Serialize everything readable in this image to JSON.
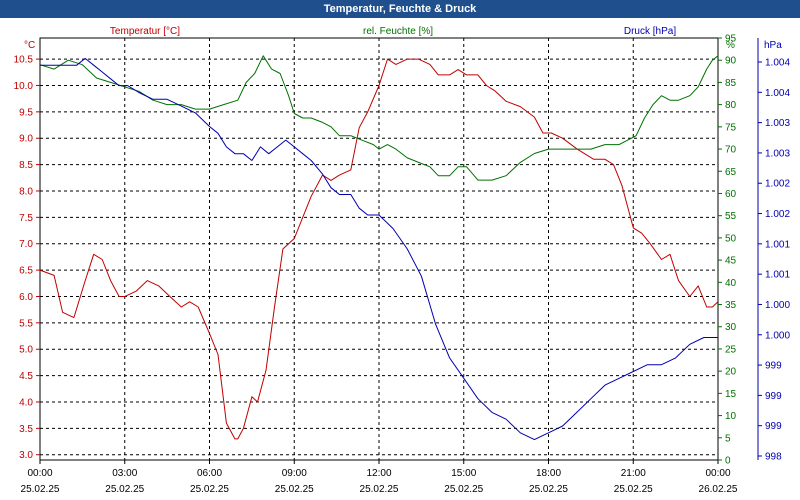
{
  "header": {
    "title": "Temperatur, Feuchte & Druck"
  },
  "colors": {
    "temperature": "#c00000",
    "humidity": "#007000",
    "pressure": "#0000b0",
    "title_bar": "#1f4f8c"
  },
  "chart_data": {
    "type": "line",
    "title": "Temperatur, Feuchte & Druck",
    "grid": true,
    "x": {
      "tick_times": [
        "00:00",
        "03:00",
        "06:00",
        "09:00",
        "12:00",
        "15:00",
        "18:00",
        "21:00",
        "00:00"
      ],
      "tick_dates": [
        "25.02.25",
        "25.02.25",
        "25.02.25",
        "25.02.25",
        "25.02.25",
        "25.02.25",
        "25.02.25",
        "25.02.25",
        "26.02.25"
      ],
      "range_hours": [
        0,
        24
      ]
    },
    "axes": {
      "temperature": {
        "label": "Temperatur [°C]",
        "unit": "°C",
        "side": "left",
        "range": [
          2.9,
          10.9
        ],
        "ticks": [
          "3.0",
          "3.5",
          "4.0",
          "4.5",
          "5.0",
          "5.5",
          "6.0",
          "6.5",
          "7.0",
          "7.5",
          "8.0",
          "8.5",
          "9.0",
          "9.5",
          "10.0",
          "10.5"
        ]
      },
      "humidity": {
        "label": "rel. Feuchte [%]",
        "unit": "%",
        "side": "right",
        "range": [
          0,
          95
        ],
        "ticks": [
          "0",
          "5",
          "10",
          "15",
          "20",
          "25",
          "30",
          "35",
          "40",
          "45",
          "50",
          "55",
          "60",
          "65",
          "70",
          "75",
          "80",
          "85",
          "90",
          "95"
        ]
      },
      "pressure": {
        "label": "Druck [hPa]",
        "unit": "hPa",
        "side": "right",
        "range": [
          998.1,
          1004.3
        ],
        "ticks": [
          "998",
          "999",
          "999",
          "999",
          "1.000",
          "1.000",
          "1.001",
          "1.001",
          "1.002",
          "1.002",
          "1.003",
          "1.003",
          "1.004",
          "1.004"
        ]
      }
    },
    "series": [
      {
        "name": "Temperatur [°C]",
        "axis": "temperature",
        "x": [
          0,
          0.5,
          0.8,
          1.2,
          1.6,
          1.9,
          2.2,
          2.5,
          2.8,
          3.0,
          3.4,
          3.8,
          4.2,
          4.6,
          5.0,
          5.3,
          5.6,
          6.0,
          6.3,
          6.6,
          6.9,
          7.0,
          7.2,
          7.5,
          7.7,
          8.0,
          8.3,
          8.6,
          9.0,
          9.3,
          9.6,
          10.0,
          10.3,
          10.6,
          11.0,
          11.3,
          11.6,
          12.0,
          12.3,
          12.6,
          13.0,
          13.4,
          13.8,
          14.1,
          14.5,
          14.8,
          15.1,
          15.5,
          15.8,
          16.1,
          16.5,
          17.0,
          17.5,
          17.8,
          18.1,
          18.5,
          19.0,
          19.3,
          19.6,
          20.0,
          20.3,
          20.6,
          21.0,
          21.3,
          21.6,
          22.0,
          22.3,
          22.6,
          23.0,
          23.3,
          23.6,
          23.8,
          24.0
        ],
        "values": [
          6.5,
          6.4,
          5.7,
          5.6,
          6.3,
          6.8,
          6.7,
          6.3,
          6.0,
          6.0,
          6.1,
          6.3,
          6.2,
          6.0,
          5.8,
          5.9,
          5.8,
          5.3,
          4.9,
          3.6,
          3.3,
          3.3,
          3.5,
          4.1,
          4.0,
          4.6,
          5.8,
          6.9,
          7.1,
          7.5,
          7.9,
          8.3,
          8.2,
          8.3,
          8.4,
          9.2,
          9.5,
          10.0,
          10.5,
          10.4,
          10.5,
          10.5,
          10.4,
          10.2,
          10.2,
          10.3,
          10.2,
          10.2,
          10.0,
          9.9,
          9.7,
          9.6,
          9.4,
          9.1,
          9.1,
          9.0,
          8.8,
          8.7,
          8.6,
          8.6,
          8.5,
          8.1,
          7.3,
          7.2,
          7.0,
          6.7,
          6.8,
          6.3,
          6.0,
          6.2,
          5.8,
          5.8,
          5.9
        ]
      },
      {
        "name": "rel. Feuchte [%]",
        "axis": "humidity",
        "x": [
          0,
          0.5,
          1.0,
          1.5,
          2.0,
          2.5,
          3.0,
          3.5,
          4.0,
          4.5,
          5.0,
          5.5,
          6.0,
          6.5,
          7.0,
          7.3,
          7.6,
          7.9,
          8.2,
          8.5,
          8.8,
          9.0,
          9.3,
          9.6,
          10.0,
          10.3,
          10.6,
          11.0,
          11.4,
          11.8,
          12.0,
          12.3,
          12.6,
          13.0,
          13.4,
          13.8,
          14.1,
          14.5,
          14.8,
          15.1,
          15.5,
          16.0,
          16.5,
          17.0,
          17.5,
          18.0,
          18.5,
          19.0,
          19.5,
          20.0,
          20.5,
          20.8,
          21.1,
          21.4,
          21.7,
          22.0,
          22.3,
          22.6,
          23.0,
          23.3,
          23.6,
          23.8,
          24.0
        ],
        "values": [
          89,
          88,
          90,
          89,
          86,
          85,
          84,
          83,
          81,
          80,
          80,
          79,
          79,
          80,
          81,
          85,
          87,
          91,
          88,
          87,
          82,
          78,
          77,
          77,
          76,
          75,
          73,
          73,
          72,
          71,
          70,
          71,
          70,
          68,
          67,
          66,
          64,
          64,
          66,
          66,
          63,
          63,
          64,
          67,
          69,
          70,
          70,
          70,
          70,
          71,
          71,
          72,
          73,
          77,
          80,
          82,
          81,
          81,
          82,
          84,
          88,
          90,
          91
        ]
      },
      {
        "name": "Druck [hPa]",
        "axis": "pressure",
        "x": [
          0,
          0.5,
          1.0,
          1.3,
          1.6,
          1.9,
          2.2,
          2.5,
          2.8,
          3.1,
          3.5,
          4.0,
          4.5,
          5.0,
          5.5,
          6.0,
          6.3,
          6.6,
          6.9,
          7.2,
          7.5,
          7.8,
          8.1,
          8.4,
          8.7,
          9.0,
          9.3,
          9.6,
          10.0,
          10.3,
          10.6,
          11.0,
          11.3,
          11.6,
          12.0,
          12.5,
          13.0,
          13.5,
          14.0,
          14.5,
          15.0,
          15.5,
          16.0,
          16.5,
          17.0,
          17.5,
          18.0,
          18.5,
          19.0,
          19.5,
          20.0,
          20.5,
          21.0,
          21.5,
          22.0,
          22.5,
          23.0,
          23.5,
          24.0
        ],
        "values": [
          1003.9,
          1003.9,
          1003.9,
          1003.9,
          1004.0,
          1003.9,
          1003.8,
          1003.7,
          1003.6,
          1003.6,
          1003.5,
          1003.4,
          1003.4,
          1003.3,
          1003.2,
          1003.0,
          1002.9,
          1002.7,
          1002.6,
          1002.6,
          1002.5,
          1002.7,
          1002.6,
          1002.7,
          1002.8,
          1002.7,
          1002.6,
          1002.5,
          1002.3,
          1002.1,
          1002.0,
          1002.0,
          1001.8,
          1001.7,
          1001.7,
          1001.5,
          1001.2,
          1000.8,
          1000.1,
          999.6,
          999.3,
          999.0,
          998.8,
          998.7,
          998.5,
          998.4,
          998.5,
          998.6,
          998.8,
          999.0,
          999.2,
          999.3,
          999.4,
          999.5,
          999.5,
          999.6,
          999.8,
          999.9,
          999.9
        ]
      }
    ]
  }
}
